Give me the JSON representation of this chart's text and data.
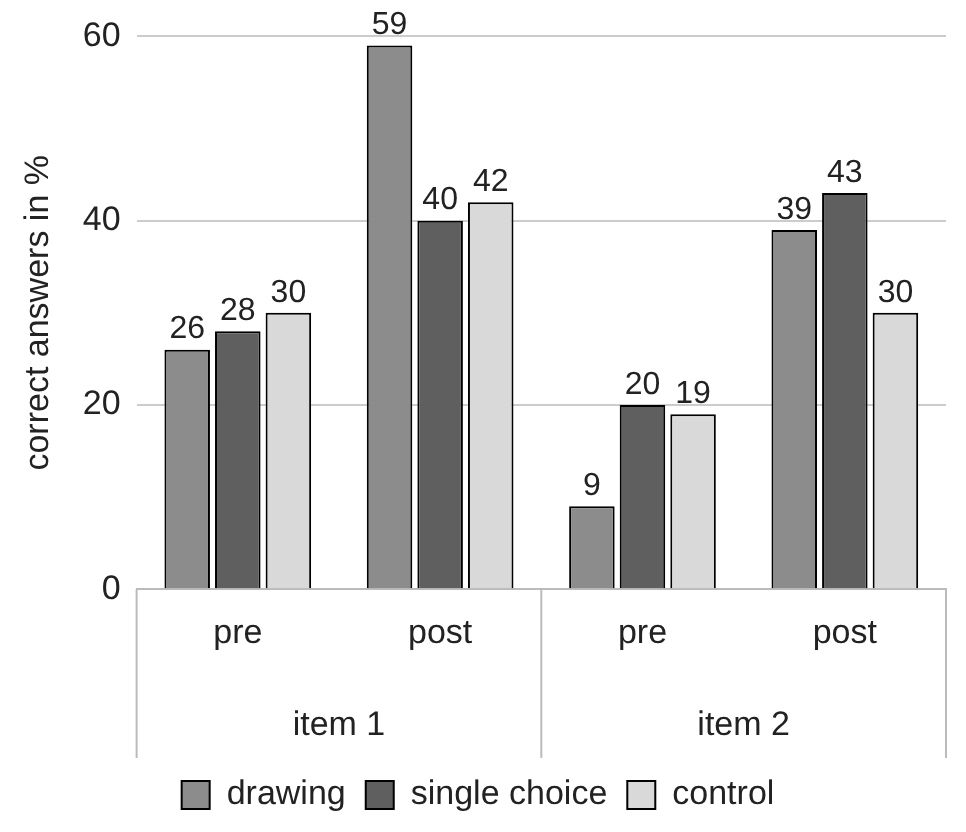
{
  "chart_data": {
    "type": "bar",
    "ylabel": "correct answers in %",
    "categories": [
      "pre",
      "post",
      "pre",
      "post"
    ],
    "series": [
      {
        "name": "drawing",
        "color": "#8c8c8c",
        "values": [
          26,
          59,
          9,
          39
        ]
      },
      {
        "name": "single choice",
        "color": "#5f5f5f",
        "values": [
          28,
          40,
          20,
          43
        ]
      },
      {
        "name": "control",
        "color": "#d9d9d9",
        "values": [
          30,
          42,
          19,
          30
        ]
      }
    ],
    "annotations": [
      "item 1",
      "item 2"
    ],
    "ylim": [
      0,
      60
    ],
    "yticks": [
      0,
      20,
      40,
      60
    ],
    "grid": "y",
    "legend": "bottom",
    "data_labels": true
  }
}
